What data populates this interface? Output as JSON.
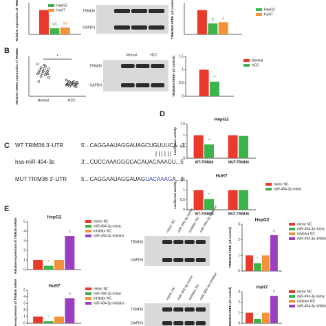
{
  "panels": [
    "B",
    "C",
    "D",
    "E"
  ],
  "sequences": {
    "wt_label": "WT TRIM36 3'-UTR",
    "wt_seq": "5'...CAGGAAUAGGAUAGCUGUUUCA...3'",
    "pairing": "| | | | | |",
    "mir_label": "hsa-miR-494-3p",
    "mir_seq": "3'...CUCCAAAGGGCACAUACAAAGU...5'",
    "mut_label": "MUT TRIM36 3'-UTR",
    "mut_seq": [
      "5'...CAGGAAUAGGAUAG",
      "UACAAAG",
      "A...3'"
    ]
  },
  "blots": [
    {
      "bands": [
        "TRIM36",
        "GAPDH"
      ],
      "lanes": []
    },
    {
      "bands": [
        "TRIM36",
        "GAPDH"
      ],
      "lanes": [
        "Normal",
        "HCC"
      ]
    },
    {
      "bands": [
        "TRIM36",
        "GAPDH"
      ],
      "lanes": [
        "mimic NC",
        "miR-494-3p mimic",
        "inhibitor NC",
        "miR-494-3p inhibitor"
      ]
    },
    {
      "bands": [
        "TRIM36",
        "GAPDH"
      ],
      "lanes": [
        "mimic NC",
        "miR-494-3p mimic",
        "inhibitor NC",
        "miR-494-3p inhibitor"
      ]
    }
  ],
  "chart_data": [
    {
      "type": "bar",
      "y_label": "Relative expression of TRIM36",
      "ylim": [
        0,
        1.3
      ],
      "legend": true,
      "series": [
        {
          "name": null,
          "color": "#e8392a",
          "values": [
            1.0
          ]
        },
        {
          "name": "HepG2",
          "color": "#3cb44b",
          "values": [
            0.25
          ],
          "annotations": [
            "&&"
          ]
        },
        {
          "name": "HuH7",
          "color": "#f39237",
          "values": [
            0.28
          ],
          "annotations": [
            "&&"
          ]
        }
      ]
    },
    {
      "type": "bar",
      "y_label": "TRIM36/GAPDH (of control)",
      "ylim": [
        0,
        1.3
      ],
      "legend": true,
      "series": [
        {
          "name": null,
          "color": "#e8392a",
          "values": [
            1.0
          ]
        },
        {
          "name": "HepG2",
          "color": "#3cb44b",
          "values": [
            0.45
          ],
          "annotations": [
            "&"
          ]
        },
        {
          "name": "HuH7",
          "color": "#f39237",
          "values": [
            0.5
          ],
          "annotations": [
            "&"
          ]
        }
      ]
    },
    {
      "type": "strip",
      "y_label": "Relative mRNA expression of TRIM36",
      "ylim": [
        0,
        1.6
      ],
      "categories": [
        "Normal",
        "HCC"
      ],
      "significance": "*",
      "points": [
        [
          1.3,
          1.2,
          1.15,
          1.1,
          1.1,
          1.05,
          1.0,
          1.0,
          0.95,
          0.95,
          0.9,
          0.9,
          0.85,
          0.8,
          0.75,
          1.25,
          1.05,
          0.9,
          1.0,
          0.6
        ],
        [
          0.65,
          0.6,
          0.58,
          0.55,
          0.55,
          0.52,
          0.5,
          0.5,
          0.48,
          0.47,
          0.45,
          0.45,
          0.42,
          0.4,
          0.5,
          0.55,
          0.6,
          0.38,
          0.52,
          0.47
        ]
      ]
    },
    {
      "type": "bar",
      "y_label": "TRIM36/GAPDH (of control)",
      "ylim": [
        0,
        1.5
      ],
      "yticks": [
        0.0,
        0.5,
        1.0,
        1.5
      ],
      "legend": true,
      "series": [
        {
          "name": "Normal",
          "color": "#e8392a",
          "values": [
            1.0
          ]
        },
        {
          "name": "HCC",
          "color": "#3cb44b",
          "values": [
            0.55
          ],
          "annotations": [
            "**"
          ]
        }
      ]
    },
    {
      "type": "bar",
      "title": "HepG2",
      "y_label": "Luciferase activity",
      "ylim": [
        0,
        1.5
      ],
      "yticks": [
        0.0,
        0.5,
        1.0,
        1.5
      ],
      "legend": false,
      "categories": [
        "WT-TRIM36",
        "MUT-TRIM36"
      ],
      "series": [
        {
          "name": "mimic NC",
          "color": "#e8392a",
          "values": [
            1.0,
            1.0
          ]
        },
        {
          "name": "miR-494-3p mimic",
          "color": "#3cb44b",
          "values": [
            0.6,
            0.97
          ],
          "annotations": [
            "**",
            null
          ]
        }
      ]
    },
    {
      "type": "bar",
      "title": "HuH7",
      "y_label": "Luciferase activity",
      "ylim": [
        0,
        1.5
      ],
      "yticks": [
        0.0,
        0.5,
        1.0,
        1.5
      ],
      "legend": true,
      "categories": [
        "WT-TRIM36",
        "MUT-TRIM36"
      ],
      "series": [
        {
          "name": "mimic NC",
          "color": "#e8392a",
          "values": [
            1.0,
            1.0
          ]
        },
        {
          "name": "miR-494-3p mimic",
          "color": "#3cb44b",
          "values": [
            0.55,
            1.0
          ],
          "annotations": [
            "**",
            null
          ]
        }
      ]
    },
    {
      "type": "bar",
      "title": "HepG2",
      "y_label": "Relative expression of TRIM36 mRNA",
      "ylim": [
        0,
        5
      ],
      "yticks": [
        0,
        1,
        2,
        3,
        4,
        5
      ],
      "legend": true,
      "series": [
        {
          "name": "mimic NC",
          "color": "#e8392a",
          "values": [
            1.0
          ]
        },
        {
          "name": "miR-494-3p mimic",
          "color": "#3cb44b",
          "values": [
            0.4
          ],
          "annotations": [
            "*"
          ]
        },
        {
          "name": "inhibitor NC",
          "color": "#f39237",
          "values": [
            1.0
          ]
        },
        {
          "name": "miR-494-3p inhibitor",
          "color": "#9b3fc0",
          "values": [
            3.5
          ],
          "annotations": [
            "#"
          ]
        }
      ]
    },
    {
      "type": "bar",
      "title": "HepG2",
      "y_label": "TRIM36/GAPDH (of control)",
      "ylim": [
        0,
        3
      ],
      "yticks": [
        0,
        1,
        2,
        3
      ],
      "legend": true,
      "series": [
        {
          "name": "mimic NC",
          "color": "#e8392a",
          "values": [
            1.0
          ]
        },
        {
          "name": "miR-494-3p mimic",
          "color": "#3cb44b",
          "values": [
            0.5
          ],
          "annotations": [
            "*"
          ]
        },
        {
          "name": "inhibitor NC",
          "color": "#f39237",
          "values": [
            1.0
          ]
        },
        {
          "name": "miR-494-3p inhibitor",
          "color": "#9b3fc0",
          "values": [
            2.3
          ],
          "annotations": [
            "#"
          ]
        }
      ]
    },
    {
      "type": "bar",
      "title": "HuH7",
      "y_label": "Relative expression of TRIM36 mRNA",
      "ylim": [
        0,
        5
      ],
      "yticks": [
        0,
        1,
        2,
        3,
        4,
        5
      ],
      "legend": true,
      "series": [
        {
          "name": "mimic NC",
          "color": "#e8392a",
          "values": [
            1.0
          ]
        },
        {
          "name": "miR-494-3p mimic",
          "color": "#3cb44b",
          "values": [
            0.3
          ],
          "annotations": [
            "*"
          ]
        },
        {
          "name": "inhibitor NC",
          "color": "#f39237",
          "values": [
            1.0
          ]
        },
        {
          "name": "miR-494-3p inhibitor",
          "color": "#9b3fc0",
          "values": [
            3.8
          ],
          "annotations": [
            "#"
          ]
        }
      ]
    },
    {
      "type": "bar",
      "title": "HuH7",
      "y_label": "TRIM36/GAPDH (of control)",
      "ylim": [
        0,
        3
      ],
      "yticks": [
        0,
        1,
        2,
        3
      ],
      "legend": true,
      "series": [
        {
          "name": "mimic NC",
          "color": "#e8392a",
          "values": [
            1.0
          ]
        },
        {
          "name": "miR-494-3p mimic",
          "color": "#3cb44b",
          "values": [
            0.4
          ],
          "annotations": [
            "*"
          ]
        },
        {
          "name": "inhibitor NC",
          "color": "#f39237",
          "values": [
            1.0
          ]
        },
        {
          "name": "miR-494-3p inhibitor",
          "color": "#9b3fc0",
          "values": [
            2.6
          ],
          "annotations": [
            "#"
          ]
        }
      ]
    }
  ]
}
